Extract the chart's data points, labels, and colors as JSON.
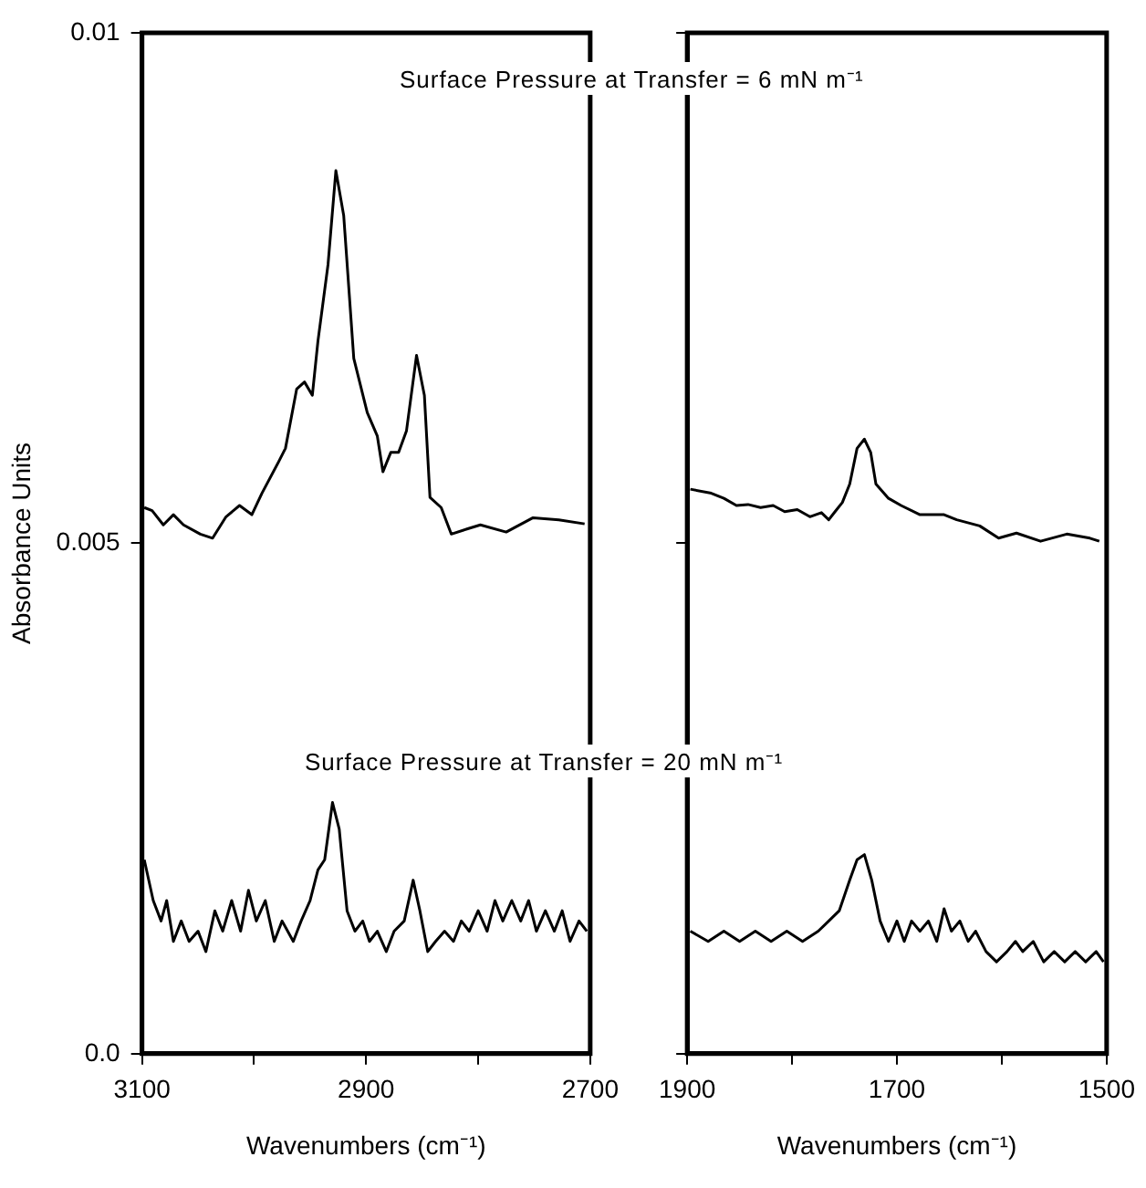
{
  "chart_data": [
    {
      "type": "line",
      "ylabel": "Absorbance Units",
      "xlabel": "Wavenumbers (cm⁻¹)",
      "annotations": [
        "Surface Pressure at Transfer = 6 mN m⁻¹",
        "Surface Pressure at Transfer = 20 mN m⁻¹"
      ],
      "xlim": [
        3100,
        2700
      ],
      "xticks": [
        3100,
        {
          "value": 3000,
          "label": null
        },
        2900,
        {
          "value": 2800,
          "label": null
        },
        2700
      ],
      "ylim": [
        0,
        0.01
      ],
      "yticks": [
        {
          "value": 0,
          "label": "0.0"
        },
        0.005,
        0.01
      ],
      "grid": false,
      "legend": false,
      "marker": "none",
      "line_style": "solid",
      "series": [
        {
          "color": "#000000",
          "x": [
            3098,
            3091,
            3081,
            3072,
            3063,
            3048,
            3037,
            3025,
            3013,
            3002,
            2993,
            2978,
            2972,
            2962,
            2955,
            2948,
            2943,
            2934,
            2927,
            2920,
            2911,
            2899,
            2890,
            2885,
            2878,
            2871,
            2864,
            2855,
            2848,
            2843,
            2833,
            2824,
            2810,
            2798,
            2775,
            2751,
            2728,
            2705
          ],
          "values": [
            0.00535,
            0.00532,
            0.00518,
            0.00528,
            0.00518,
            0.00509,
            0.00505,
            0.00526,
            0.00537,
            0.00528,
            0.00549,
            0.0058,
            0.00593,
            0.00651,
            0.00658,
            0.00645,
            0.00698,
            0.00773,
            0.00865,
            0.00821,
            0.00681,
            0.00628,
            0.00605,
            0.0057,
            0.00589,
            0.00589,
            0.0061,
            0.00684,
            0.00645,
            0.00545,
            0.00535,
            0.00509,
            0.00514,
            0.00518,
            0.00511,
            0.00525,
            0.00523,
            0.00519
          ]
        },
        {
          "color": "#000000",
          "x": [
            3098,
            3090,
            3083,
            3078,
            3072,
            3065,
            3058,
            3050,
            3043,
            3035,
            3028,
            3020,
            3012,
            3005,
            2998,
            2990,
            2982,
            2975,
            2965,
            2958,
            2950,
            2943,
            2937,
            2930,
            2924,
            2917,
            2910,
            2903,
            2897,
            2890,
            2882,
            2875,
            2866,
            2858,
            2852,
            2845,
            2838,
            2830,
            2822,
            2815,
            2808,
            2800,
            2792,
            2785,
            2778,
            2770,
            2762,
            2755,
            2748,
            2740,
            2732,
            2725,
            2718,
            2710,
            2703
          ],
          "values": [
            0.0019,
            0.0015,
            0.0013,
            0.0015,
            0.0011,
            0.0013,
            0.0011,
            0.0012,
            0.001,
            0.0014,
            0.0012,
            0.0015,
            0.0012,
            0.0016,
            0.0013,
            0.0015,
            0.0011,
            0.0013,
            0.0011,
            0.0013,
            0.0015,
            0.0018,
            0.0019,
            0.00246,
            0.0022,
            0.0014,
            0.0012,
            0.0013,
            0.0011,
            0.0012,
            0.001,
            0.0012,
            0.0013,
            0.0017,
            0.0014,
            0.001,
            0.0011,
            0.0012,
            0.0011,
            0.0013,
            0.0012,
            0.0014,
            0.0012,
            0.0015,
            0.0013,
            0.0015,
            0.0013,
            0.0015,
            0.0012,
            0.0014,
            0.0012,
            0.0014,
            0.0011,
            0.0013,
            0.0012
          ]
        }
      ]
    },
    {
      "type": "line",
      "xlabel": "Wavenumbers (cm⁻¹)",
      "xlim": [
        1900,
        1500
      ],
      "xticks": [
        1900,
        {
          "value": 1800,
          "label": null
        },
        1700,
        {
          "value": 1600,
          "label": null
        },
        1500
      ],
      "ylim": [
        0,
        0.01
      ],
      "yticks": [
        {
          "value": 0,
          "label": null
        },
        {
          "value": 0.005,
          "label": null
        },
        {
          "value": 0.01,
          "label": null
        }
      ],
      "tick_labels": "x",
      "grid": false,
      "legend": false,
      "marker": "none",
      "line_style": "solid",
      "series": [
        {
          "color": "#000000",
          "x": [
            1897,
            1877,
            1865,
            1853,
            1842,
            1830,
            1818,
            1807,
            1795,
            1783,
            1772,
            1765,
            1759,
            1752,
            1745,
            1738,
            1731,
            1725,
            1720,
            1708,
            1696,
            1678,
            1655,
            1643,
            1621,
            1603,
            1586,
            1563,
            1538,
            1516,
            1507
          ],
          "values": [
            0.00553,
            0.00549,
            0.00544,
            0.00537,
            0.00538,
            0.00535,
            0.00537,
            0.00531,
            0.00533,
            0.00526,
            0.0053,
            0.00523,
            0.00531,
            0.0054,
            0.00558,
            0.00593,
            0.00602,
            0.00589,
            0.00558,
            0.00544,
            0.00537,
            0.00528,
            0.00528,
            0.00523,
            0.00517,
            0.00505,
            0.0051,
            0.00502,
            0.00509,
            0.00505,
            0.00502
          ]
        },
        {
          "color": "#000000",
          "x": [
            1897,
            1880,
            1865,
            1850,
            1835,
            1820,
            1805,
            1790,
            1775,
            1765,
            1755,
            1745,
            1738,
            1731,
            1724,
            1716,
            1708,
            1700,
            1693,
            1686,
            1678,
            1670,
            1662,
            1655,
            1648,
            1640,
            1632,
            1625,
            1615,
            1605,
            1595,
            1587,
            1580,
            1570,
            1560,
            1550,
            1540,
            1530,
            1520,
            1510,
            1503
          ],
          "values": [
            0.0012,
            0.0011,
            0.0012,
            0.0011,
            0.0012,
            0.0011,
            0.0012,
            0.0011,
            0.0012,
            0.0013,
            0.0014,
            0.0017,
            0.0019,
            0.00195,
            0.0017,
            0.0013,
            0.0011,
            0.0013,
            0.0011,
            0.0013,
            0.0012,
            0.0013,
            0.0011,
            0.00142,
            0.0012,
            0.0013,
            0.0011,
            0.0012,
            0.001,
            0.0009,
            0.001,
            0.0011,
            0.001,
            0.0011,
            0.0009,
            0.001,
            0.0009,
            0.001,
            0.0009,
            0.001,
            0.0009
          ]
        }
      ]
    }
  ]
}
